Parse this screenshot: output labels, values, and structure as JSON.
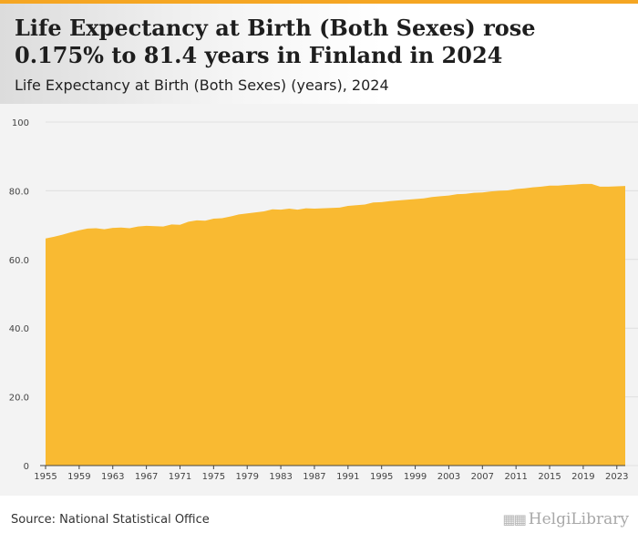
{
  "header": {
    "title": "Life Expectancy at Birth (Both Sexes) rose 0.175% to 81.4 years in Finland in 2024",
    "subtitle": "Life Expectancy at Birth (Both Sexes) (years), 2024"
  },
  "footer": {
    "source": "Source: National Statistical Office",
    "logo_text": "HelgiLibrary"
  },
  "colors": {
    "area": "#f9ba32",
    "accent": "#f5a623",
    "grid": "#e0e0e0"
  },
  "chart_data": {
    "type": "area",
    "title": "Life Expectancy at Birth (Both Sexes) rose 0.175% to 81.4 years in Finland in 2024",
    "subtitle": "Life Expectancy at Birth (Both Sexes) (years), 2024",
    "xlabel": "",
    "ylabel": "",
    "ylim": [
      0,
      100
    ],
    "yticks": [
      0,
      20,
      40,
      60,
      80,
      100
    ],
    "ytick_labels": [
      "0",
      "20.0",
      "40.0",
      "60.0",
      "80.0",
      "100"
    ],
    "xtick_labels": [
      "1955",
      "1959",
      "1963",
      "1967",
      "1971",
      "1975",
      "1979",
      "1983",
      "1987",
      "1991",
      "1995",
      "1999",
      "2003",
      "2007",
      "2011",
      "2015",
      "2019",
      "2023"
    ],
    "grid": true,
    "legend": "none",
    "x": [
      1955,
      1956,
      1957,
      1958,
      1959,
      1960,
      1961,
      1962,
      1963,
      1964,
      1965,
      1966,
      1967,
      1968,
      1969,
      1970,
      1971,
      1972,
      1973,
      1974,
      1975,
      1976,
      1977,
      1978,
      1979,
      1980,
      1981,
      1982,
      1983,
      1984,
      1985,
      1986,
      1987,
      1988,
      1989,
      1990,
      1991,
      1992,
      1993,
      1994,
      1995,
      1996,
      1997,
      1998,
      1999,
      2000,
      2001,
      2002,
      2003,
      2004,
      2005,
      2006,
      2007,
      2008,
      2009,
      2010,
      2011,
      2012,
      2013,
      2014,
      2015,
      2016,
      2017,
      2018,
      2019,
      2020,
      2021,
      2022,
      2023,
      2024
    ],
    "series": [
      {
        "values": [
          66.1,
          66.6,
          67.2,
          67.9,
          68.5,
          69.0,
          69.1,
          68.8,
          69.2,
          69.3,
          69.1,
          69.6,
          69.8,
          69.7,
          69.6,
          70.2,
          70.1,
          71.0,
          71.4,
          71.3,
          71.9,
          72.0,
          72.5,
          73.1,
          73.4,
          73.7,
          74.0,
          74.6,
          74.5,
          74.8,
          74.5,
          74.9,
          74.8,
          74.9,
          75.0,
          75.1,
          75.6,
          75.8,
          76.0,
          76.6,
          76.7,
          77.0,
          77.2,
          77.4,
          77.6,
          77.8,
          78.2,
          78.4,
          78.6,
          79.0,
          79.1,
          79.4,
          79.5,
          79.8,
          80.0,
          80.1,
          80.5,
          80.7,
          81.0,
          81.2,
          81.5,
          81.5,
          81.7,
          81.8,
          82.0,
          82.0,
          81.2,
          81.2,
          81.3,
          81.4
        ]
      }
    ]
  }
}
